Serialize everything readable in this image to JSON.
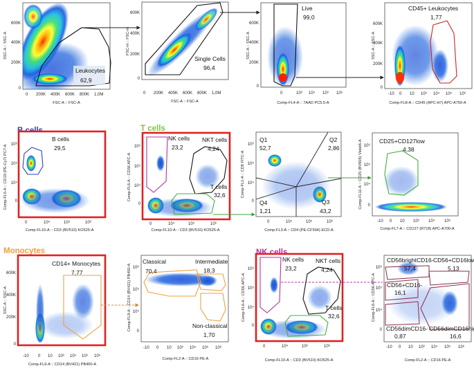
{
  "sections": {
    "b_cells": "B cells",
    "t_cells": "T cells",
    "monocytes": "Monocytes",
    "nk_cells": "NK cells"
  },
  "colors": {
    "b_cells": "#2c3fb8",
    "t_cells": "#7dc243",
    "monocytes": "#f0a040",
    "nk_cells": "#b72ea6",
    "highlight_box": "#e02020"
  },
  "plots": {
    "p1": {
      "xlabel": "FSC-A :: FSC-A",
      "ylabel": "SSC-A :: SSC-A",
      "xticks": [
        "0",
        "200K",
        "400K",
        "600K",
        "800K",
        "1,0M"
      ],
      "yticks": [
        "0",
        "200K",
        "400K",
        "600K"
      ],
      "gate": "Leukocytes",
      "value": "62,9"
    },
    "p2": {
      "xlabel": "FSC-A :: FSC-A",
      "ylabel": "FSC-H :: FSC-H",
      "xticks": [
        "0",
        "200K",
        "400K",
        "600K",
        "800K",
        "1,0M"
      ],
      "yticks": [
        "0",
        "200K",
        "400K",
        "600K"
      ],
      "gate": "Single Cells",
      "value": "96,4"
    },
    "p3": {
      "xlabel": "Comp-FL4-A :: 7AAD PC5.5-A",
      "ylabel": "SSC-A :: SSC-A",
      "xticks": [
        "0",
        "10³",
        "10⁴",
        "10⁵",
        "10⁶"
      ],
      "yticks": [
        "0",
        "200K",
        "400K",
        "600K"
      ],
      "gate": "Live",
      "value": "99,0"
    },
    "p4": {
      "xlabel": "Comp-FL8-A :: CD45 (APC-H7) APC-A750-A",
      "ylabel": "SSC-A :: SSC-A",
      "xticks": [
        "-10",
        "0",
        "10",
        "10³",
        "10⁴",
        "10⁵",
        "10⁶"
      ],
      "yticks": [
        "0",
        "200K",
        "400K",
        "600K"
      ],
      "gate": "CD45+ Leukocytes",
      "value": "1,77"
    },
    "p5": {
      "xlabel": "Comp-FL10-A :: CD3 (BV510) KO525-A",
      "ylabel": "Comp-FL5-A :: CD19 (PE-Cy7) PC7-A",
      "xticks": [
        "0",
        "10⁴",
        "10⁵",
        "10⁶"
      ],
      "yticks": [
        "0",
        "10⁴",
        "10⁵",
        "10⁶"
      ],
      "gate": "B cells",
      "value": "29,5"
    },
    "p6": {
      "xlabel": "Comp-FL10-A :: CD3 (BV510) KO525-A",
      "ylabel": "Comp-FL6-A :: CD56 APC-A",
      "xticks": [
        "0",
        "10⁴",
        "10⁵",
        "10⁶"
      ],
      "yticks": [
        "0",
        "10⁴",
        "10⁵",
        "10⁶"
      ],
      "gates": [
        {
          "label": "NK cells",
          "value": "23,2"
        },
        {
          "label": "NKT cells",
          "value": "4,24"
        },
        {
          "label": "T cells",
          "value": "32,6"
        }
      ]
    },
    "p7": {
      "xlabel": "Comp-FL3-A :: CD4 (PE-CF594) ECD-A",
      "ylabel": "Comp-FL1-A :: CD8 FITC-A",
      "xticks": [
        "0",
        "10⁴",
        "10⁵",
        "10⁶"
      ],
      "yticks": [
        "0",
        "10⁴",
        "10⁵",
        "10⁶"
      ],
      "quads": [
        {
          "label": "Q1",
          "value": "52,7"
        },
        {
          "label": "Q2",
          "value": "2,86"
        },
        {
          "label": "Q3",
          "value": "43,2"
        },
        {
          "label": "Q4",
          "value": "1,21"
        }
      ]
    },
    "p8": {
      "xlabel": "Comp-FL7-A :: CD127 (R718) APC-A700-A",
      "ylabel": "Comp-FL11-A :: CD25 (BV605) Violet6-A",
      "xticks": [
        "-10",
        "0",
        "10",
        "10³",
        "10⁴",
        "10⁵"
      ],
      "yticks": [
        "0",
        "10⁴",
        "10⁵",
        "10⁶"
      ],
      "gate": "CD25+CD127low",
      "value": "4,38"
    },
    "p9": {
      "xlabel": "Comp-FL9-A :: CD14 (BV421) PB450-A",
      "ylabel": "SSC-A :: SSC-A",
      "xticks": [
        "-10",
        "0",
        "10",
        "10³",
        "10⁴",
        "10⁵",
        "10⁶"
      ],
      "yticks": [
        "0",
        "200K",
        "400K",
        "600K"
      ],
      "gate": "CD14+ Monocytes",
      "value": "7,77"
    },
    "p10": {
      "xlabel": "Comp-FL2-A :: CD16 PE-A",
      "ylabel": "Comp-FL9-A :: CD14 (BV421) PB450-A",
      "xticks": [
        "-10",
        "0",
        "10",
        "10³",
        "10⁴",
        "10⁵",
        "10⁶"
      ],
      "yticks": [
        "0",
        "10⁴",
        "10⁵",
        "10⁶"
      ],
      "gates": [
        {
          "label": "Classical",
          "value": "70,4"
        },
        {
          "label": "Intermediate",
          "value": "18,3"
        },
        {
          "label": "Non-classical",
          "value": "1,70"
        }
      ]
    },
    "p11": {
      "xlabel": "Comp-FL10-A :: CD3 (BV510) KO525-A",
      "ylabel": "Comp-FL6-A :: CD56 APC-A",
      "xticks": [
        "0",
        "10⁴",
        "10⁵",
        "10⁶"
      ],
      "yticks": [
        "0",
        "10⁴",
        "10⁵",
        "10⁶"
      ],
      "gates": [
        {
          "label": "NK cells",
          "value": "23,2"
        },
        {
          "label": "NKT cells",
          "value": "4,24"
        },
        {
          "label": "T cells",
          "value": "32,6"
        }
      ]
    },
    "p12": {
      "xlabel": "Comp-FL2-A :: CD16 PE-A",
      "ylabel": "Comp-FL6-A :: CD56 APC-A",
      "xticks": [
        "-10",
        "0",
        "10",
        "10³",
        "10⁴",
        "10⁵",
        "10⁶"
      ],
      "yticks": [
        "0",
        "10⁴",
        "10⁵",
        "10⁶"
      ],
      "gates": [
        {
          "label": "CD56brightCD16-",
          "value": "57,4"
        },
        {
          "label": "CD56+CD16low",
          "value": "5,13"
        },
        {
          "label": "CD56+CD16-",
          "value": "16,1"
        },
        {
          "label": "CD56dimCD16-",
          "value": "0,87"
        },
        {
          "label": "CD56dimCD16high",
          "value": "16,6"
        }
      ]
    }
  }
}
